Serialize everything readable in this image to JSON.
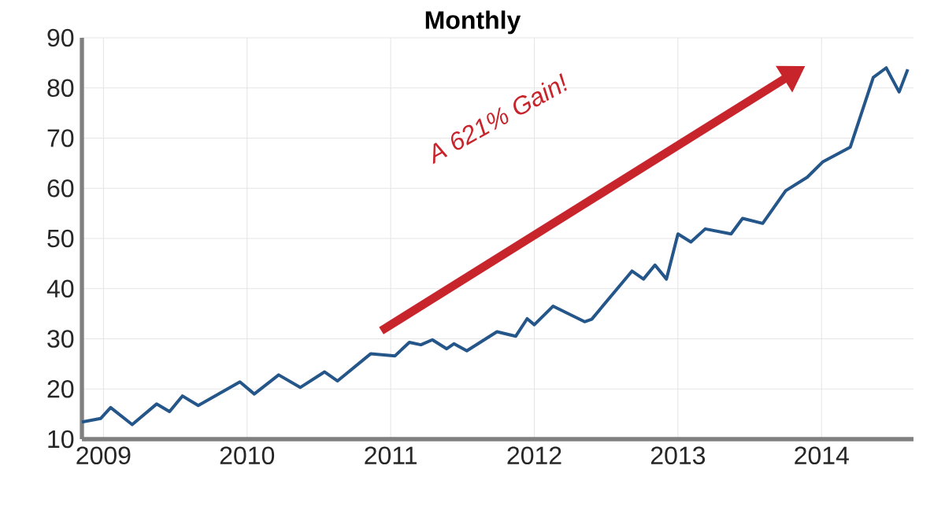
{
  "chart_data": {
    "type": "line",
    "title": "Monthly",
    "annotations": [
      "A 621% Gain!"
    ],
    "x": [
      2008.85,
      2008.98,
      2009.05,
      2009.2,
      2009.37,
      2009.46,
      2009.55,
      2009.66,
      2009.95,
      2010.05,
      2010.22,
      2010.37,
      2010.54,
      2010.63,
      2010.86,
      2011.03,
      2011.13,
      2011.21,
      2011.29,
      2011.39,
      2011.44,
      2011.53,
      2011.74,
      2011.87,
      2011.95,
      2012.0,
      2012.13,
      2012.35,
      2012.4,
      2012.68,
      2012.76,
      2012.84,
      2012.92,
      2013.0,
      2013.09,
      2013.19,
      2013.37,
      2013.45,
      2013.59,
      2013.75,
      2013.9,
      2014.01,
      2014.2,
      2014.36,
      2014.45,
      2014.54,
      2014.6
    ],
    "series": [
      {
        "color": "#24568a",
        "values": [
          13.4,
          14.1,
          16.3,
          12.9,
          17.0,
          15.5,
          18.6,
          16.7,
          21.4,
          19.0,
          22.8,
          20.3,
          23.4,
          21.6,
          27.0,
          26.6,
          29.3,
          28.8,
          29.8,
          28.0,
          29.0,
          27.6,
          31.4,
          30.5,
          34.0,
          32.8,
          36.5,
          33.4,
          33.9,
          43.5,
          41.9,
          44.7,
          41.9,
          50.9,
          49.3,
          51.9,
          50.9,
          54.0,
          53.0,
          59.5,
          62.2,
          65.3,
          68.2,
          82.1,
          84.0,
          79.2,
          83.7
        ]
      }
    ],
    "xlim": [
      2008.85,
      2014.64
    ],
    "ylim": [
      10,
      90
    ],
    "xticks": [
      2009,
      2010,
      2011,
      2012,
      2013,
      2014
    ],
    "yticks": [
      10,
      20,
      30,
      40,
      50,
      60,
      70,
      80,
      90
    ],
    "grid": true,
    "marker": "none",
    "line_style": "solid"
  }
}
